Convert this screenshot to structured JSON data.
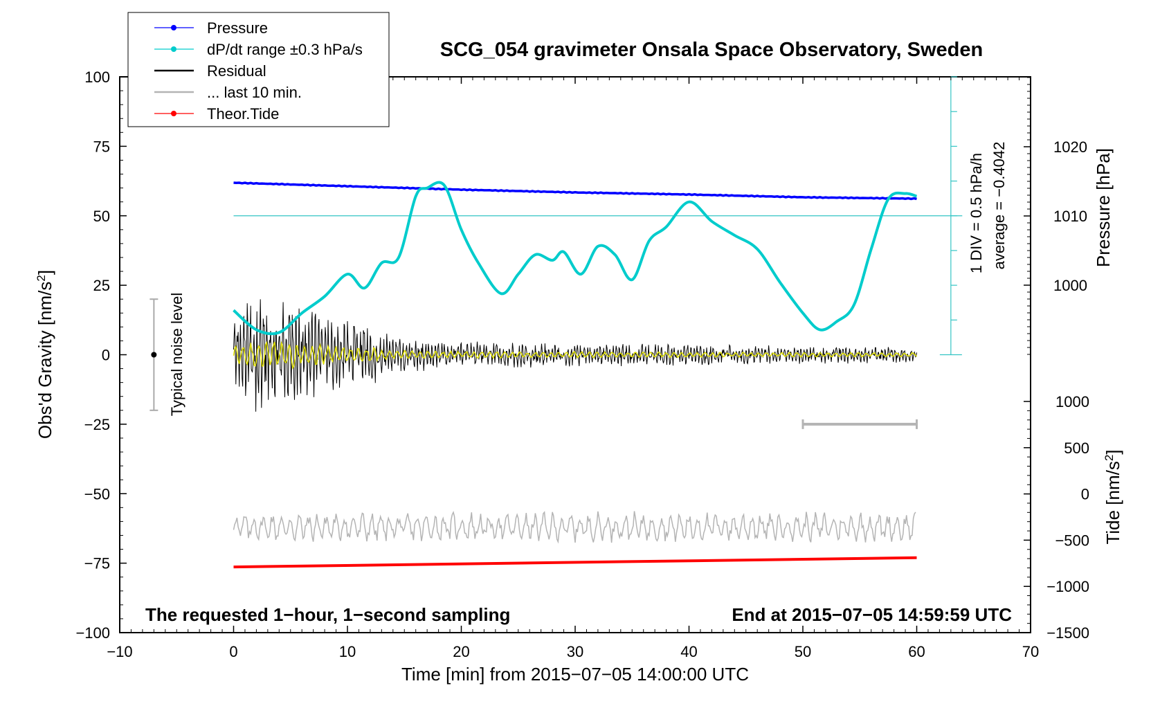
{
  "chart_data": {
    "type": "line",
    "title": "SCG_054 gravimeter Onsala Space Observatory, Sweden",
    "xlabel": "Time [min] from 2015−07−05 14:00:00 UTC",
    "ylabel": "Obs'd Gravity [nm/s",
    "ylabel_sup": "2",
    "ylabel_end": "]",
    "xlim": [
      -10,
      70
    ],
    "ylim": [
      -100,
      100
    ],
    "x_ticks": [
      -10,
      0,
      10,
      20,
      30,
      40,
      50,
      60,
      70
    ],
    "x_tick_labels": [
      "−10",
      "0",
      "10",
      "20",
      "30",
      "40",
      "50",
      "60",
      "70"
    ],
    "y_ticks": [
      -100,
      -75,
      -50,
      -25,
      0,
      25,
      50,
      75,
      100
    ],
    "y_tick_labels": [
      "−100",
      "−75",
      "−50",
      "−25",
      "0",
      "25",
      "50",
      "75",
      "100"
    ],
    "pressure_axis": {
      "label": "Pressure [hPa]",
      "ticks": [
        1000,
        1010,
        1020
      ],
      "tick_labels": [
        "1000",
        "1010",
        "1020"
      ],
      "range_hpa": [
        990,
        1030
      ]
    },
    "tide_axis": {
      "label": "Tide [nm/s",
      "label_sup": "2",
      "label_end": "]",
      "ticks": [
        1000,
        500,
        0,
        -500,
        -1000,
        -1500
      ],
      "tick_labels": [
        "1000",
        "500",
        "0",
        "−500",
        "−1000",
        "−1500"
      ],
      "range": [
        -1500,
        1000
      ]
    },
    "dpdt_scale": {
      "label1": "1 DIV = 0.5 hPa/h",
      "label2": "average = −0.4042",
      "divisions": 8
    },
    "noise_label": "Typical noise level",
    "noise_range": [
      -20,
      20
    ],
    "last10_label": "... last 10 min.",
    "bottom_left": "The requested 1−hour, 1−second sampling",
    "bottom_right": "End at 2015−07−05 14:59:59 UTC",
    "legend": [
      {
        "label": "Pressure",
        "color": "#0000ff",
        "marker": true
      },
      {
        "label": "dP/dt range ±0.3 hPa/s",
        "color": "#00cccc",
        "marker": true
      },
      {
        "label": "Residual",
        "color": "#000000",
        "marker": false
      },
      {
        "label": "... last 10 min.",
        "color": "#b4b4b4",
        "marker": false
      },
      {
        "label": "Theor.Tide",
        "color": "#ff0000",
        "marker": true
      }
    ],
    "series": [
      {
        "name": "Pressure",
        "color": "#0000ff",
        "axis": "pressure",
        "x": [
          0,
          10,
          20,
          30,
          40,
          50,
          60
        ],
        "values": [
          1014.8,
          1014.3,
          1013.8,
          1013.4,
          1013.1,
          1012.7,
          1012.5
        ]
      },
      {
        "name": "dP/dt range ±0.3 hPa/s",
        "color": "#00cccc",
        "axis": "gravity",
        "x": [
          0,
          2,
          4,
          6,
          8,
          10,
          11.5,
          13,
          14.5,
          16,
          17,
          18.5,
          20,
          21.5,
          23.5,
          25,
          26.5,
          28,
          29,
          30.5,
          32,
          33.5,
          35,
          36.5,
          38,
          40,
          42,
          44,
          46,
          48,
          50,
          51.5,
          53,
          54.5,
          56,
          57.5,
          59,
          60
        ],
        "values": [
          16,
          9,
          8,
          15,
          21,
          29,
          24,
          33,
          35,
          57,
          60,
          61,
          45,
          33,
          22,
          29,
          36,
          34,
          37,
          29,
          39,
          36,
          27,
          41,
          46,
          55,
          48,
          43,
          38,
          26,
          15,
          9,
          12,
          18,
          38,
          56,
          58,
          57
        ]
      },
      {
        "name": "Residual",
        "color": "#000000",
        "axis": "gravity",
        "x_range": [
          0,
          60
        ],
        "envelope_x": [
          0,
          2,
          5,
          8,
          12,
          14,
          18,
          25,
          35,
          45,
          60
        ],
        "envelope_amplitude": [
          10,
          20,
          17,
          12,
          10,
          6,
          4.5,
          4,
          3.5,
          3,
          2.5
        ]
      },
      {
        "name": "... last 10 min.",
        "color": "#b4b4b4",
        "axis": "gravity",
        "x_range": [
          0,
          60
        ],
        "level": -62,
        "amplitude": 5,
        "bar_x": [
          50,
          60
        ],
        "bar_y": -25
      },
      {
        "name": "Theor.Tide",
        "color": "#ff0000",
        "axis": "tide",
        "x": [
          0,
          60
        ],
        "values": [
          -790,
          -690
        ]
      }
    ],
    "mean_line_y": 50,
    "grid": false,
    "legend_position": "top-left"
  }
}
